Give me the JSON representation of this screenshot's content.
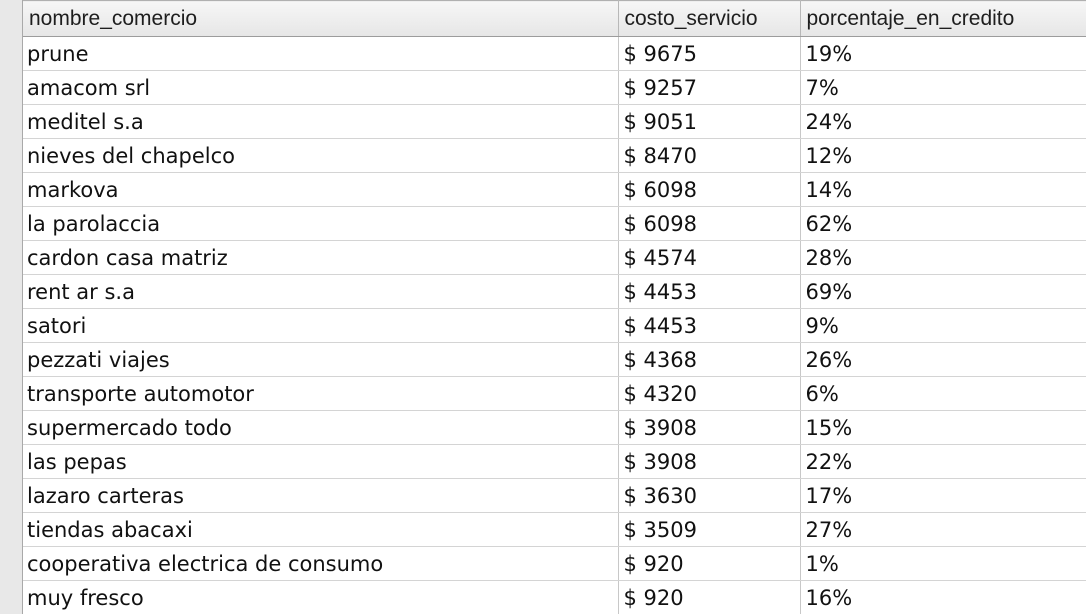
{
  "table": {
    "columns": [
      "nombre_comercio",
      "costo_servicio",
      "porcentaje_en_credito"
    ],
    "rows": [
      [
        "prune",
        "$ 9675",
        "19%"
      ],
      [
        "amacom srl",
        "$ 9257",
        "7%"
      ],
      [
        "meditel s.a",
        "$ 9051",
        "24%"
      ],
      [
        "nieves del chapelco",
        "$ 8470",
        "12%"
      ],
      [
        "markova",
        "$ 6098",
        "14%"
      ],
      [
        "la parolaccia",
        "$ 6098",
        "62%"
      ],
      [
        "cardon casa matriz",
        "$ 4574",
        "28%"
      ],
      [
        "rent ar s.a",
        "$ 4453",
        "69%"
      ],
      [
        "satori",
        "$ 4453",
        "9%"
      ],
      [
        "pezzati viajes",
        "$ 4368",
        "26%"
      ],
      [
        "transporte automotor",
        "$ 4320",
        "6%"
      ],
      [
        "supermercado todo",
        "$ 3908",
        "15%"
      ],
      [
        "las pepas",
        "$ 3908",
        "22%"
      ],
      [
        "lazaro carteras",
        "$ 3630",
        "17%"
      ],
      [
        "tiendas abacaxi",
        "$ 3509",
        "27%"
      ],
      [
        "cooperativa electrica de consumo",
        "$ 920",
        "1%"
      ],
      [
        "muy fresco",
        "$ 920",
        "16%"
      ]
    ]
  }
}
